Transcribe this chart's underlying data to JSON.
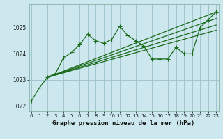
{
  "title": "Graphe pression niveau de la mer (hPa)",
  "background_color": "#cce8ee",
  "grid_color": "#9bbfc8",
  "line_color": "#1a6b1a",
  "ylim": [
    1021.8,
    1025.9
  ],
  "xlim": [
    -0.3,
    23.3
  ],
  "yticks": [
    1022,
    1023,
    1024,
    1025
  ],
  "xticks": [
    0,
    1,
    2,
    3,
    4,
    5,
    6,
    7,
    8,
    9,
    10,
    11,
    12,
    13,
    14,
    15,
    16,
    17,
    18,
    19,
    20,
    21,
    22,
    23
  ],
  "series_main": [
    1022.2,
    1022.7,
    1023.1,
    1023.25,
    1023.85,
    1024.05,
    1024.35,
    1024.75,
    1024.5,
    1024.4,
    1024.55,
    1025.05,
    1024.7,
    1024.5,
    1024.3,
    1023.8,
    1023.8,
    1023.8,
    1024.25,
    1024.0,
    1024.0,
    1025.0,
    1025.3,
    1025.6
  ],
  "series_trend": [
    [
      [
        2,
        23
      ],
      [
        1023.1,
        1025.6
      ]
    ],
    [
      [
        2,
        23
      ],
      [
        1023.1,
        1025.35
      ]
    ],
    [
      [
        2,
        23
      ],
      [
        1023.1,
        1025.1
      ]
    ],
    [
      [
        2,
        23
      ],
      [
        1023.1,
        1024.9
      ]
    ]
  ],
  "marker": "+",
  "marker_size": 4.5,
  "marker_lw": 0.8,
  "line_width": 0.9,
  "title_fontsize": 6.5,
  "tick_fontsize": 5.5,
  "xtick_fontsize": 5.0
}
